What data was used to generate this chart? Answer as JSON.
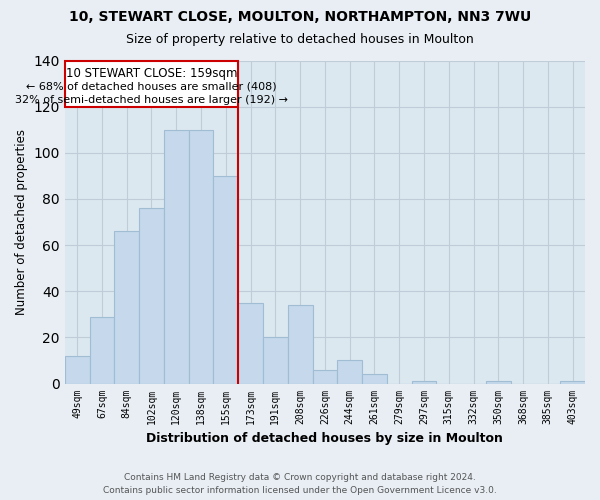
{
  "title": "10, STEWART CLOSE, MOULTON, NORTHAMPTON, NN3 7WU",
  "subtitle": "Size of property relative to detached houses in Moulton",
  "xlabel": "Distribution of detached houses by size in Moulton",
  "ylabel": "Number of detached properties",
  "categories": [
    "49sqm",
    "67sqm",
    "84sqm",
    "102sqm",
    "120sqm",
    "138sqm",
    "155sqm",
    "173sqm",
    "191sqm",
    "208sqm",
    "226sqm",
    "244sqm",
    "261sqm",
    "279sqm",
    "297sqm",
    "315sqm",
    "332sqm",
    "350sqm",
    "368sqm",
    "385sqm",
    "403sqm"
  ],
  "values": [
    12,
    29,
    66,
    76,
    110,
    110,
    90,
    35,
    20,
    34,
    6,
    10,
    4,
    0,
    1,
    0,
    0,
    1,
    0,
    0,
    1
  ],
  "bar_color": "#c5d8ec",
  "bar_edge_color": "#a0bdd4",
  "vline_color": "#cc0000",
  "ylim": [
    0,
    140
  ],
  "yticks": [
    0,
    20,
    40,
    60,
    80,
    100,
    120,
    140
  ],
  "annotation_title": "10 STEWART CLOSE: 159sqm",
  "annotation_line1": "← 68% of detached houses are smaller (408)",
  "annotation_line2": "32% of semi-detached houses are larger (192) →",
  "annotation_box_color": "#ffffff",
  "annotation_box_edge": "#cc0000",
  "footer1": "Contains HM Land Registry data © Crown copyright and database right 2024.",
  "footer2": "Contains public sector information licensed under the Open Government Licence v3.0.",
  "background_color": "#e8eef4",
  "plot_background": "#dce8f0",
  "grid_color": "#c0cdd8"
}
